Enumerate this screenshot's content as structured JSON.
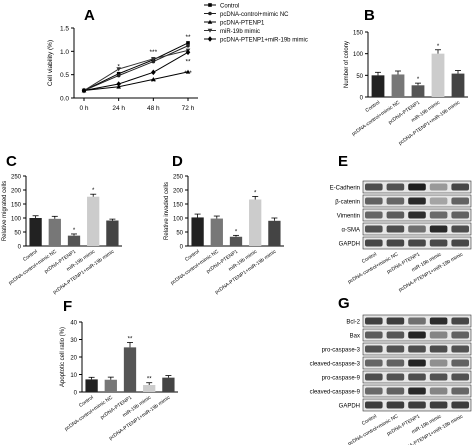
{
  "panels": [
    {
      "letter": "A"
    },
    {
      "letter": "B"
    },
    {
      "letter": "C"
    },
    {
      "letter": "D"
    },
    {
      "letter": "E"
    },
    {
      "letter": "F"
    },
    {
      "letter": "G"
    }
  ],
  "chart_data": [
    {
      "panel": "A",
      "type": "line",
      "title": "",
      "xlabel": "",
      "ylabel": "Cell viability (%)",
      "categories": [
        "0 h",
        "24 h",
        "48 h",
        "72 h"
      ],
      "ylim": [
        0,
        1.5
      ],
      "yticks": [
        "0.0",
        "0.5",
        "1.0",
        "1.5"
      ],
      "legend_position": "top-right",
      "series": [
        {
          "name": "Control",
          "values": [
            0.16,
            0.52,
            0.82,
            1.18
          ],
          "color": "#000000",
          "marker": "square"
        },
        {
          "name": "pcDNA-control+mimic NC",
          "values": [
            0.16,
            0.48,
            0.78,
            1.12
          ],
          "color": "#222222",
          "marker": "circle"
        },
        {
          "name": "pcDNA-PTENP1",
          "values": [
            0.16,
            0.24,
            0.4,
            0.56
          ],
          "color": "#000000",
          "marker": "triangle"
        },
        {
          "name": "miR-19b mimic",
          "values": [
            0.16,
            0.62,
            0.84,
            1.02
          ],
          "color": "#333333",
          "marker": "triangle-down"
        },
        {
          "name": "pcDNA-PTENP1+miR-19b mimic",
          "values": [
            0.16,
            0.3,
            0.55,
            0.98
          ],
          "color": "#000000",
          "marker": "diamond"
        }
      ],
      "annotations": [
        "*",
        "***",
        "**",
        "**",
        "**",
        "***"
      ]
    },
    {
      "panel": "B",
      "type": "bar",
      "title": "",
      "ylabel": "Number of colony",
      "categories": [
        "Control",
        "pcDNA-control+mimic NC",
        "pcDNA-PTENP1",
        "miR-19b mimic",
        "pcDNA-PTENP1+miR-19b mimic"
      ],
      "values": [
        50,
        52,
        27,
        100,
        54
      ],
      "errors": [
        7,
        8,
        5,
        9,
        7
      ],
      "ylim": [
        0,
        150
      ],
      "yticks": [
        "0",
        "50",
        "100",
        "150"
      ],
      "colors": [
        "#222222",
        "#777777",
        "#555555",
        "#cccccc",
        "#444444"
      ],
      "annotations": [
        "",
        "",
        "*",
        "*",
        ""
      ]
    },
    {
      "panel": "C",
      "type": "bar",
      "title": "",
      "ylabel": "Relative migrated cells",
      "categories": [
        "Control",
        "pcDNA-control+mimic NC",
        "pcDNA-PTENP1",
        "miR-19b mimic",
        "pcDNA-PTENP1+miR-19b mimic"
      ],
      "values": [
        100,
        97,
        37,
        176,
        91
      ],
      "errors": [
        8,
        9,
        6,
        9,
        5
      ],
      "ylim": [
        0,
        250
      ],
      "yticks": [
        "0",
        "50",
        "100",
        "150",
        "200",
        "250"
      ],
      "colors": [
        "#222222",
        "#777777",
        "#555555",
        "#cccccc",
        "#444444"
      ],
      "annotations": [
        "",
        "",
        "*",
        "*",
        ""
      ]
    },
    {
      "panel": "D",
      "type": "bar",
      "title": "",
      "ylabel": "Relative invaded cells",
      "categories": [
        "Control",
        "pcDNA-control+mimic NC",
        "pcDNA-PTENP1",
        "miR-19b mimic",
        "pcDNA-PTENP1+miR-19b mimic"
      ],
      "values": [
        102,
        98,
        33,
        166,
        90
      ],
      "errors": [
        12,
        9,
        5,
        11,
        10
      ],
      "ylim": [
        0,
        250
      ],
      "yticks": [
        "0",
        "50",
        "100",
        "150",
        "200",
        "250"
      ],
      "colors": [
        "#222222",
        "#777777",
        "#555555",
        "#cccccc",
        "#444444"
      ],
      "annotations": [
        "",
        "",
        "*",
        "*",
        ""
      ]
    },
    {
      "panel": "F",
      "type": "bar",
      "title": "",
      "ylabel": "Apoptotic cell ratio (%)",
      "categories": [
        "Control",
        "pcDNA-control+mimic NC",
        "pcDNA-PTENP1",
        "miR-19b mimic",
        "pcDNA-PTENP1+miR-19b mimic"
      ],
      "values": [
        7.2,
        7.0,
        25.5,
        4.0,
        8.2
      ],
      "errors": [
        1.2,
        1.5,
        2.8,
        1.3,
        1.2
      ],
      "ylim": [
        0,
        40
      ],
      "yticks": [
        "0",
        "10",
        "20",
        "30",
        "40"
      ],
      "colors": [
        "#222222",
        "#777777",
        "#555555",
        "#cccccc",
        "#444444"
      ],
      "annotations": [
        "",
        "",
        "**",
        "**",
        ""
      ]
    }
  ],
  "blots": [
    {
      "panel": "E",
      "rows": [
        "E-Cadherin",
        "β-catenin",
        "Vimentin",
        "α-SMA",
        "GAPDH"
      ],
      "bands": [
        [
          0.72,
          0.7,
          0.95,
          0.35,
          0.75
        ],
        [
          0.62,
          0.6,
          0.9,
          0.3,
          0.62
        ],
        [
          0.6,
          0.65,
          0.88,
          0.58,
          0.62
        ],
        [
          0.7,
          0.72,
          0.55,
          0.9,
          0.72
        ],
        [
          0.75,
          0.75,
          0.75,
          0.74,
          0.75
        ]
      ],
      "lanes": [
        "Control",
        "pcDNA-control+mimic NC",
        "pcDNA-PTENP1",
        "miR-19b mimic",
        "pcDNA-PTENP1+miR-19b mimic"
      ]
    },
    {
      "panel": "G",
      "rows": [
        "Bcl-2",
        "Bax",
        "pro-caspase-3",
        "cleaved-caspase-3",
        "pro-caspase-9",
        "cleaved-caspase-9",
        "GAPDH"
      ],
      "bands": [
        [
          0.78,
          0.8,
          0.55,
          0.88,
          0.75
        ],
        [
          0.65,
          0.68,
          0.92,
          0.45,
          0.62
        ],
        [
          0.7,
          0.7,
          0.72,
          0.72,
          0.7
        ],
        [
          0.6,
          0.62,
          0.92,
          0.4,
          0.62
        ],
        [
          0.72,
          0.7,
          0.72,
          0.7,
          0.7
        ],
        [
          0.58,
          0.62,
          0.9,
          0.45,
          0.6
        ],
        [
          0.8,
          0.8,
          0.8,
          0.8,
          0.8
        ]
      ],
      "lanes": [
        "Control",
        "pcDNA-control+mimic NC",
        "pcDNA-PTENP1",
        "miR-19b mimic",
        "pcDNA-PTENP1+miR-19b mimic"
      ]
    }
  ]
}
